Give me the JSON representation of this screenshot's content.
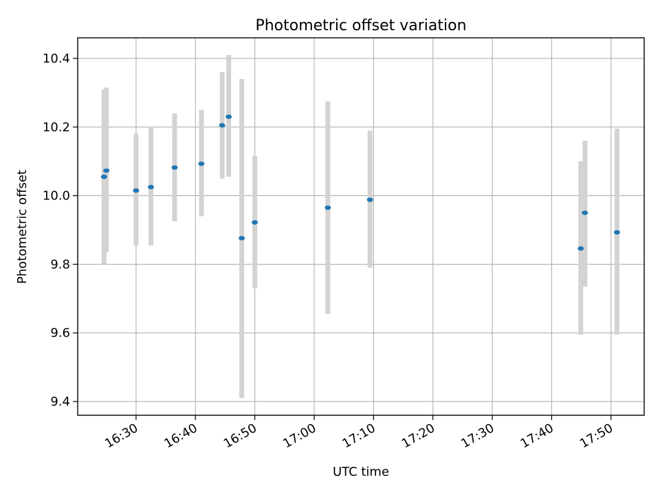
{
  "chart_data": {
    "type": "scatter",
    "title": "Photometric offset variation",
    "xlabel": "UTC time",
    "ylabel": "Photometric offset",
    "grid": true,
    "legend": "none",
    "xlim": [
      "16:20:10",
      "17:55:35"
    ],
    "ylim": [
      9.36,
      10.46
    ],
    "x_ticks": [
      "16:30",
      "16:40",
      "16:50",
      "17:00",
      "17:10",
      "17:20",
      "17:30",
      "17:40",
      "17:50"
    ],
    "y_ticks": [
      "9.4",
      "9.6",
      "9.8",
      "10.0",
      "10.2",
      "10.4"
    ],
    "colors": {
      "point": "#1f77b4",
      "errorbar": "#d3d3d3",
      "grid": "#b0b0b0"
    },
    "series": [
      {
        "points": [
          {
            "x": "16:24:36",
            "y": 10.055,
            "yerr_low": 9.8,
            "yerr_high": 10.31
          },
          {
            "x": "16:25:00",
            "y": 10.073,
            "yerr_low": 9.835,
            "yerr_high": 10.315
          },
          {
            "x": "16:30:00",
            "y": 10.015,
            "yerr_low": 9.855,
            "yerr_high": 10.18
          },
          {
            "x": "16:32:30",
            "y": 10.025,
            "yerr_low": 9.855,
            "yerr_high": 10.2
          },
          {
            "x": "16:36:30",
            "y": 10.082,
            "yerr_low": 9.925,
            "yerr_high": 10.24
          },
          {
            "x": "16:41:00",
            "y": 10.093,
            "yerr_low": 9.94,
            "yerr_high": 10.25
          },
          {
            "x": "16:44:30",
            "y": 10.205,
            "yerr_low": 10.05,
            "yerr_high": 10.36
          },
          {
            "x": "16:45:36",
            "y": 10.23,
            "yerr_low": 10.055,
            "yerr_high": 10.41
          },
          {
            "x": "16:47:48",
            "y": 9.876,
            "yerr_low": 9.41,
            "yerr_high": 10.34
          },
          {
            "x": "16:50:00",
            "y": 9.922,
            "yerr_low": 9.73,
            "yerr_high": 10.115
          },
          {
            "x": "17:02:18",
            "y": 9.965,
            "yerr_low": 9.655,
            "yerr_high": 10.275
          },
          {
            "x": "17:09:24",
            "y": 9.988,
            "yerr_low": 9.79,
            "yerr_high": 10.19
          },
          {
            "x": "17:44:54",
            "y": 9.846,
            "yerr_low": 9.595,
            "yerr_high": 10.1
          },
          {
            "x": "17:45:36",
            "y": 9.95,
            "yerr_low": 9.735,
            "yerr_high": 10.16
          },
          {
            "x": "17:51:00",
            "y": 9.893,
            "yerr_low": 9.595,
            "yerr_high": 10.195
          }
        ]
      }
    ]
  }
}
